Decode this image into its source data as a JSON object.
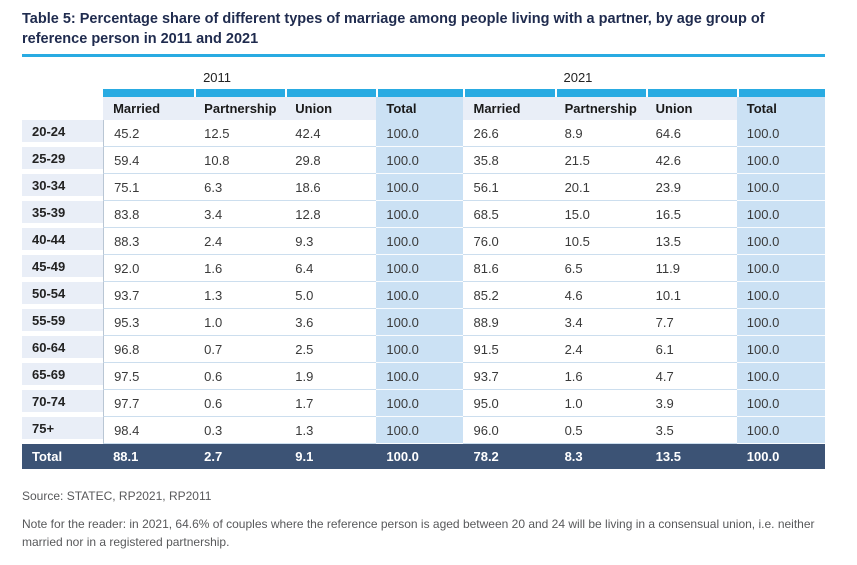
{
  "title": "Table 5: Percentage share of different types of marriage among people living with a partner, by age group of reference person in 2011 and 2021",
  "colors": {
    "accent_cyan": "#29abe2",
    "title_navy": "#1f2b4e",
    "header_bg": "#e9eef7",
    "total_col_bg": "#cbe1f4",
    "total_row_bg": "#3c5375",
    "footer_gray": "#58595b"
  },
  "table": {
    "year_groups": [
      "2011",
      "2021"
    ],
    "columns": [
      "Married",
      "Partnership",
      "Union",
      "Total"
    ],
    "rows": [
      {
        "label": "20-24",
        "y2011": [
          "45.2",
          "12.5",
          "42.4",
          "100.0"
        ],
        "y2021": [
          "26.6",
          "8.9",
          "64.6",
          "100.0"
        ]
      },
      {
        "label": "25-29",
        "y2011": [
          "59.4",
          "10.8",
          "29.8",
          "100.0"
        ],
        "y2021": [
          "35.8",
          "21.5",
          "42.6",
          "100.0"
        ]
      },
      {
        "label": "30-34",
        "y2011": [
          "75.1",
          "6.3",
          "18.6",
          "100.0"
        ],
        "y2021": [
          "56.1",
          "20.1",
          "23.9",
          "100.0"
        ]
      },
      {
        "label": "35-39",
        "y2011": [
          "83.8",
          "3.4",
          "12.8",
          "100.0"
        ],
        "y2021": [
          "68.5",
          "15.0",
          "16.5",
          "100.0"
        ]
      },
      {
        "label": "40-44",
        "y2011": [
          "88.3",
          "2.4",
          "9.3",
          "100.0"
        ],
        "y2021": [
          "76.0",
          "10.5",
          "13.5",
          "100.0"
        ]
      },
      {
        "label": "45-49",
        "y2011": [
          "92.0",
          "1.6",
          "6.4",
          "100.0"
        ],
        "y2021": [
          "81.6",
          "6.5",
          "11.9",
          "100.0"
        ]
      },
      {
        "label": "50-54",
        "y2011": [
          "93.7",
          "1.3",
          "5.0",
          "100.0"
        ],
        "y2021": [
          "85.2",
          "4.6",
          "10.1",
          "100.0"
        ]
      },
      {
        "label": "55-59",
        "y2011": [
          "95.3",
          "1.0",
          "3.6",
          "100.0"
        ],
        "y2021": [
          "88.9",
          "3.4",
          "7.7",
          "100.0"
        ]
      },
      {
        "label": "60-64",
        "y2011": [
          "96.8",
          "0.7",
          "2.5",
          "100.0"
        ],
        "y2021": [
          "91.5",
          "2.4",
          "6.1",
          "100.0"
        ]
      },
      {
        "label": "65-69",
        "y2011": [
          "97.5",
          "0.6",
          "1.9",
          "100.0"
        ],
        "y2021": [
          "93.7",
          "1.6",
          "4.7",
          "100.0"
        ]
      },
      {
        "label": "70-74",
        "y2011": [
          "97.7",
          "0.6",
          "1.7",
          "100.0"
        ],
        "y2021": [
          "95.0",
          "1.0",
          "3.9",
          "100.0"
        ]
      },
      {
        "label": "75+",
        "y2011": [
          "98.4",
          "0.3",
          "1.3",
          "100.0"
        ],
        "y2021": [
          "96.0",
          "0.5",
          "3.5",
          "100.0"
        ]
      }
    ],
    "total_row": {
      "label": "Total",
      "y2011": [
        "88.1",
        "2.7",
        "9.1",
        "100.0"
      ],
      "y2021": [
        "78.2",
        "8.3",
        "13.5",
        "100.0"
      ]
    }
  },
  "source": "Source: STATEC, RP2021, RP2011",
  "note": "Note for the reader: in 2021, 64.6% of couples where the reference person is aged between 20 and 24 will be living in a consensual union, i.e. neither married nor in a registered partnership."
}
